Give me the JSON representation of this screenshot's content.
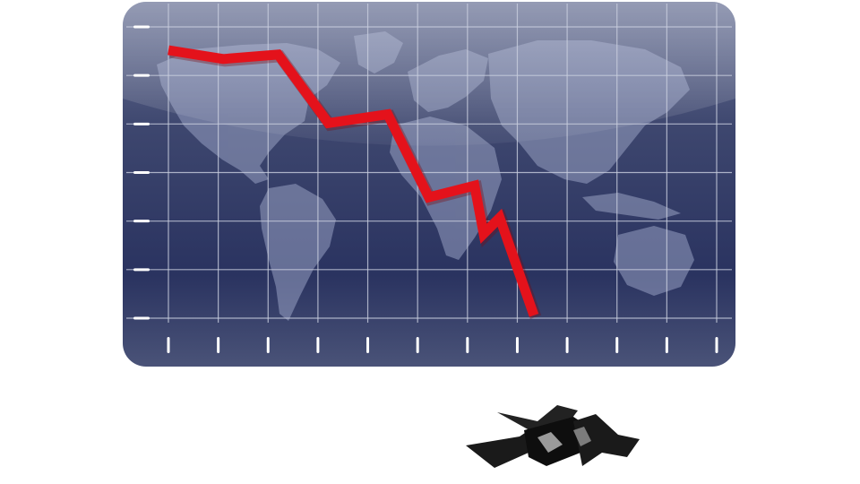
{
  "chart_data": {
    "type": "line",
    "title": "",
    "xlabel": "",
    "ylabel": "",
    "grid": true,
    "tick_labels_shown": false,
    "x_ticks": 12,
    "y_ticks": 7,
    "xlim": [
      0,
      12
    ],
    "ylim": [
      -3,
      7
    ],
    "series": [
      {
        "values": [
          {
            "x": 0.0,
            "y": 6.2
          },
          {
            "x": 1.2,
            "y": 5.9
          },
          {
            "x": 2.4,
            "y": 6.05
          },
          {
            "x": 3.5,
            "y": 3.7
          },
          {
            "x": 4.8,
            "y": 4.0
          },
          {
            "x": 5.7,
            "y": 1.15
          },
          {
            "x": 6.7,
            "y": 1.55
          },
          {
            "x": 6.9,
            "y": -0.1
          },
          {
            "x": 7.25,
            "y": 0.45
          },
          {
            "x": 8.0,
            "y": -2.9
          }
        ]
      }
    ],
    "colors": {
      "panel": "#4a5378",
      "panel_dark": "#1f2850",
      "grid": "#c9cede",
      "line": "#e4121b",
      "continents": "#8a93b5",
      "crack": "#1a1a1a"
    },
    "background_image": "world-map",
    "annotation_graphic": "ground-crack-hole"
  }
}
